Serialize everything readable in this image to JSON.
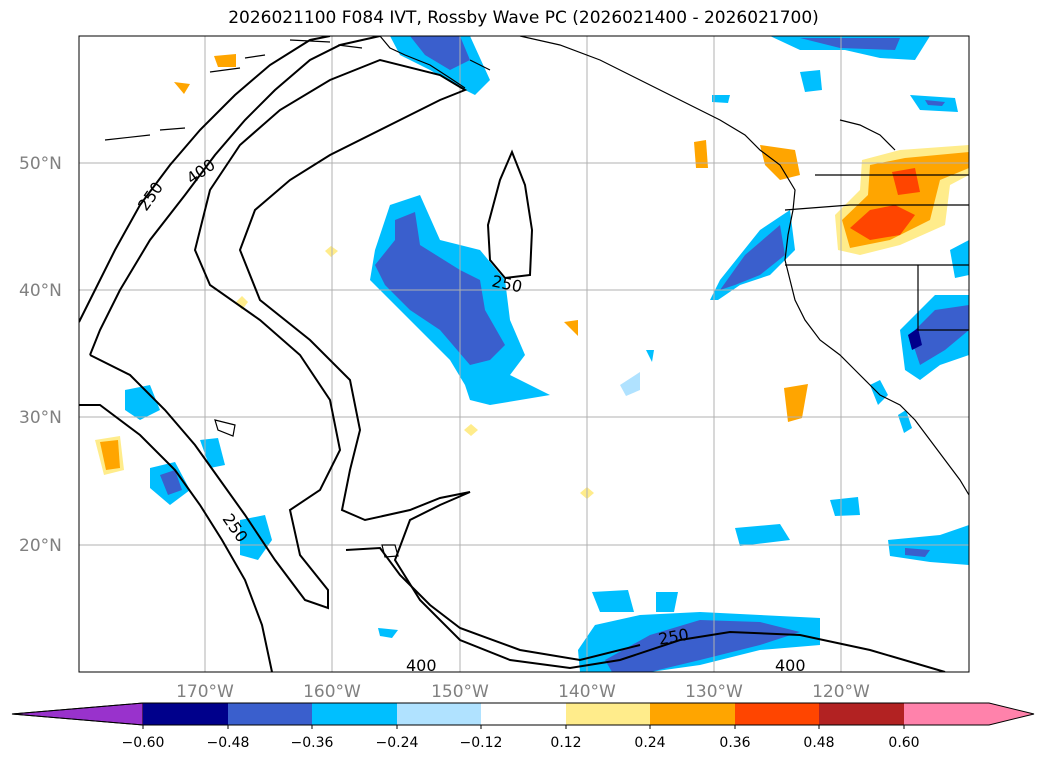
{
  "title": "2026021100 F084 IVT, Rossby Wave PC (2026021400 - 2026021700)",
  "map": {
    "projection": "PlateCarree",
    "lon_range": [
      -180,
      -110
    ],
    "lat_range": [
      10,
      60
    ],
    "lat_labels": [
      "50°N",
      "40°N",
      "30°N",
      "20°N"
    ],
    "lon_labels": [
      "170°W",
      "160°W",
      "150°W",
      "140°W",
      "130°W",
      "120°W"
    ],
    "grid": true,
    "coastlines": true,
    "borders": true
  },
  "ivt_contours": {
    "levels": [
      "250",
      "400"
    ],
    "labels": [
      "250",
      "400",
      "250",
      "250",
      "250",
      "400",
      "400"
    ]
  },
  "colorbar": {
    "orientation": "horizontal",
    "extend": "both",
    "ticks": [
      "−0.60",
      "−0.48",
      "−0.36",
      "−0.24",
      "−0.12",
      "0.12",
      "0.24",
      "0.36",
      "0.48",
      "0.60"
    ],
    "colors": {
      "under": "#9932cc",
      "bins": [
        "#00008b",
        "#3a5fcd",
        "#00bfff",
        "#b0e2ff",
        "#ffffff",
        "#ffec8b",
        "#ffa500",
        "#ff4500",
        "#b22222"
      ],
      "over": "#ff82ab"
    }
  }
}
